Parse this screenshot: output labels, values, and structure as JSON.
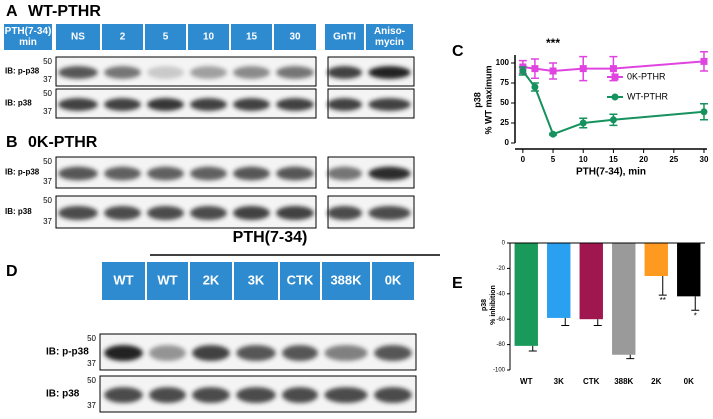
{
  "panels": {
    "a": {
      "label": "A",
      "title": "WT-PTHR",
      "corner": [
        "PTH(7-34)",
        "min"
      ],
      "lanes": [
        [
          "NS"
        ],
        [
          "2"
        ],
        [
          "5"
        ],
        [
          "10"
        ],
        [
          "15"
        ],
        [
          "30"
        ],
        [
          "GnTI"
        ],
        [
          "Aniso-",
          "mycin"
        ]
      ],
      "rows": [
        "IB: p-p38",
        "IB: p38"
      ],
      "markers": [
        "50",
        "37"
      ]
    },
    "b": {
      "label": "B",
      "title": "0K-PTHR",
      "rows": [
        "IB: p-p38",
        "IB: p38"
      ],
      "markers": [
        "50",
        "37"
      ]
    },
    "c": {
      "label": "C"
    },
    "d": {
      "label": "D",
      "group": "PTH(7-34)",
      "lanes": [
        "WT",
        "WT",
        "2K",
        "3K",
        "CTK",
        "388K",
        "0K"
      ],
      "rows": [
        "IB: p-p38",
        "IB: p38"
      ],
      "markers": [
        "50",
        "37"
      ]
    },
    "e": {
      "label": "E"
    }
  },
  "chart_data": [
    {
      "type": "line",
      "y_label": [
        "p38",
        "% WT maximum"
      ],
      "x_label": "PTH(7-34), min",
      "x": [
        0,
        2,
        5,
        10,
        15,
        30
      ],
      "xlim": [
        -1.3,
        30.5
      ],
      "xticks": [
        0,
        5,
        10,
        15,
        20,
        25,
        30
      ],
      "ylim": [
        0,
        110
      ],
      "yticks": [
        0,
        25,
        50,
        75,
        100
      ],
      "annotation": {
        "text": "***",
        "x": 5
      },
      "legend": "right",
      "series": [
        {
          "name": "0K-PTHR",
          "color": "#e044e0",
          "marker": "square",
          "values": [
            95,
            93,
            90,
            93,
            93,
            102
          ],
          "errors": [
            8,
            12,
            10,
            15,
            15,
            12
          ]
        },
        {
          "name": "WT-PTHR",
          "color": "#16925e",
          "marker": "circle",
          "values": [
            90,
            70,
            11,
            25,
            29,
            39
          ],
          "errors": [
            5,
            5,
            1,
            6,
            7,
            10
          ]
        }
      ]
    },
    {
      "type": "bar",
      "y_label": [
        "p38",
        "% inhibition"
      ],
      "categories": [
        "WT",
        "3K",
        "CTK",
        "388K",
        "2K",
        "0K"
      ],
      "values": [
        -81,
        -59,
        -60,
        -88,
        -26,
        -42
      ],
      "errors": [
        4,
        6,
        5,
        3,
        15,
        11
      ],
      "colors": [
        "#1a9a5a",
        "#2aa0f0",
        "#a0174f",
        "#9a9a9a",
        "#ff9a20",
        "#000000"
      ],
      "significance": [
        null,
        null,
        null,
        null,
        "**",
        "*"
      ],
      "ylim": [
        -100,
        0
      ],
      "yticks": [
        0,
        -20,
        -40,
        -60,
        -80,
        -100
      ]
    }
  ]
}
